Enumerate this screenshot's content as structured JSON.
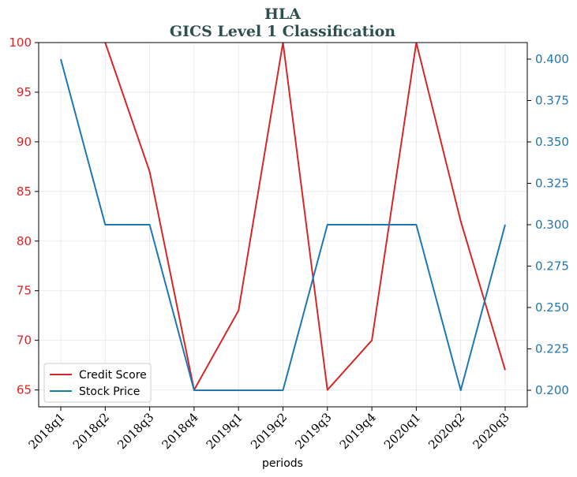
{
  "chart_data": {
    "type": "line",
    "title": "HLA",
    "subtitle": "GICS Level 1 Classification",
    "xlabel": "periods",
    "categories": [
      "2018q1",
      "2018q2",
      "2018q3",
      "2018q4",
      "2019q1",
      "2019q2",
      "2019q3",
      "2019q4",
      "2020q1",
      "2020q2",
      "2020q3"
    ],
    "series": [
      {
        "name": "Credit Score",
        "axis": "left",
        "color": "#d62728",
        "values": [
          null,
          100,
          87,
          65,
          73,
          100,
          65,
          70,
          100,
          82,
          67
        ]
      },
      {
        "name": "Stock Price",
        "axis": "right",
        "color": "#1f77b4",
        "values": [
          0.4,
          0.3,
          0.3,
          0.2,
          0.2,
          0.2,
          0.3,
          0.3,
          0.3,
          0.2,
          0.3
        ]
      }
    ],
    "y_left": {
      "ylim": [
        63.3,
        100
      ],
      "ticks": [
        "65",
        "70",
        "75",
        "80",
        "85",
        "90",
        "95",
        "100"
      ],
      "color": "#d62728"
    },
    "y_right": {
      "ylim": [
        0.19,
        0.41
      ],
      "ticks": [
        "0.200",
        "0.225",
        "0.250",
        "0.275",
        "0.300",
        "0.325",
        "0.350",
        "0.375",
        "0.400"
      ],
      "color": "#1f77b4"
    },
    "grid": true,
    "legend_position": "lower-left"
  }
}
